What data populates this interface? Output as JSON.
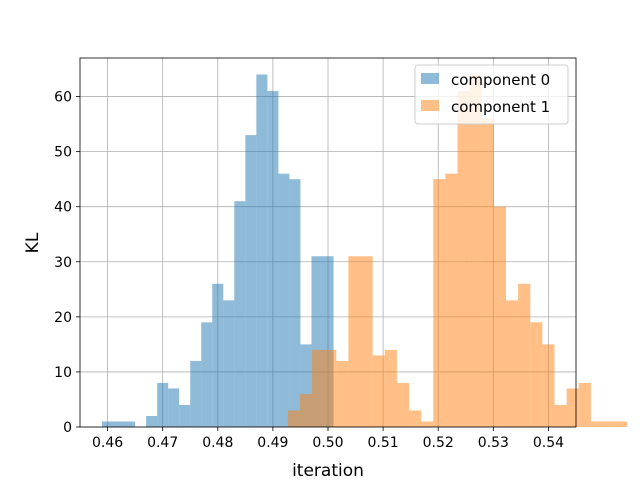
{
  "chart_data": {
    "type": "histogram",
    "xlabel": "iteration",
    "ylabel": "KL",
    "xlim": [
      0.455,
      0.545
    ],
    "ylim": [
      0,
      67
    ],
    "xticks": [
      0.46,
      0.47,
      0.48,
      0.49,
      0.5,
      0.51,
      0.52,
      0.53,
      0.54
    ],
    "xtick_labels": [
      "0.46",
      "0.47",
      "0.48",
      "0.49",
      "0.50",
      "0.51",
      "0.52",
      "0.53",
      "0.54"
    ],
    "yticks": [
      0,
      10,
      20,
      30,
      40,
      50,
      60
    ],
    "ytick_labels": [
      "0",
      "10",
      "20",
      "30",
      "40",
      "50",
      "60"
    ],
    "grid": true,
    "legend_position": "top-right",
    "series": [
      {
        "name": "component 0",
        "color": "#1f77b4",
        "alpha": 0.5,
        "bin_start": 0.459,
        "bin_width": 0.002,
        "counts": [
          1,
          1,
          1,
          0,
          2,
          8,
          7,
          4,
          12,
          19,
          26,
          23,
          41,
          53,
          64,
          61,
          46,
          45,
          15,
          31,
          31
        ]
      },
      {
        "name": "component 1",
        "color": "#ff7f0e",
        "alpha": 0.5,
        "bin_start": 0.4927,
        "bin_width": 0.0022,
        "counts": [
          3,
          6,
          14,
          14,
          12,
          31,
          31,
          13,
          14,
          8,
          3,
          1,
          45,
          46,
          61,
          64,
          56,
          40,
          23,
          26,
          19,
          15,
          4,
          7,
          8,
          1,
          1,
          1
        ]
      }
    ]
  }
}
